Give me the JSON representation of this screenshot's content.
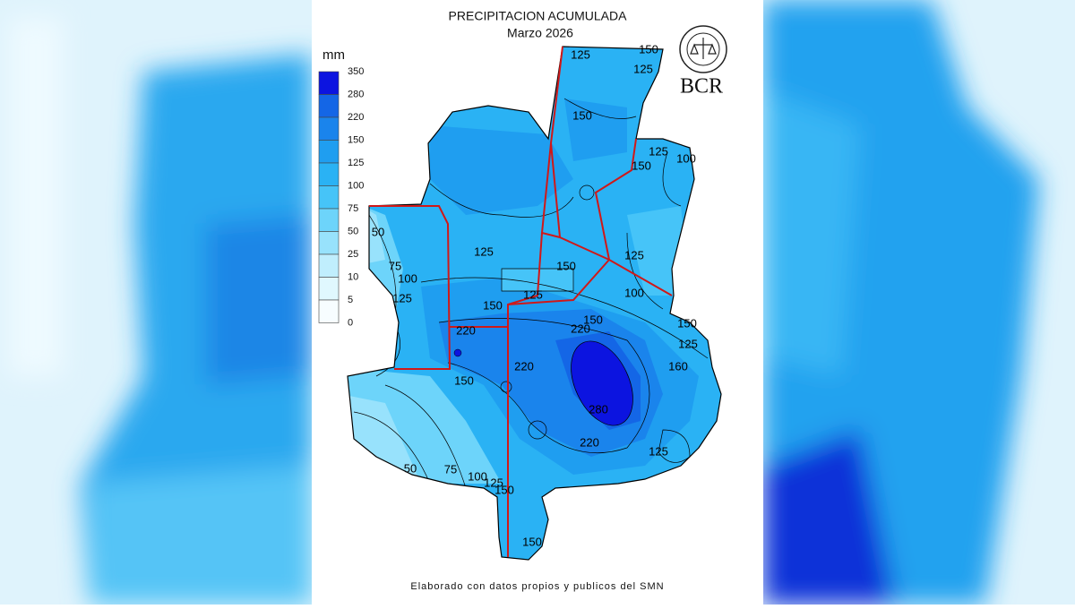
{
  "header": {
    "title": "PRECIPITACION ACUMULADA",
    "subtitle": "Marzo 2026"
  },
  "legend": {
    "unit": "mm",
    "levels": [
      350,
      280,
      220,
      150,
      125,
      100,
      75,
      50,
      25,
      10,
      5,
      0
    ],
    "colors": [
      "#0c14e0",
      "#1466e6",
      "#1a84ec",
      "#1f9ef0",
      "#2ab2f4",
      "#46c4f8",
      "#6dd4fa",
      "#98e2fc",
      "#c0eefd",
      "#e0f8fe",
      "#f7fdff"
    ]
  },
  "contour_labels": [
    125,
    150,
    125,
    150,
    150,
    125,
    100,
    125,
    150,
    125,
    125,
    150,
    100,
    150,
    150,
    220,
    220,
    125,
    160,
    220,
    150,
    280,
    220,
    125,
    50,
    75,
    100,
    125,
    150,
    150,
    50,
    75,
    100,
    125
  ],
  "logo": {
    "text": "BCR"
  },
  "footer": {
    "text": "Elaborado con datos propios y publicos del SMN"
  }
}
